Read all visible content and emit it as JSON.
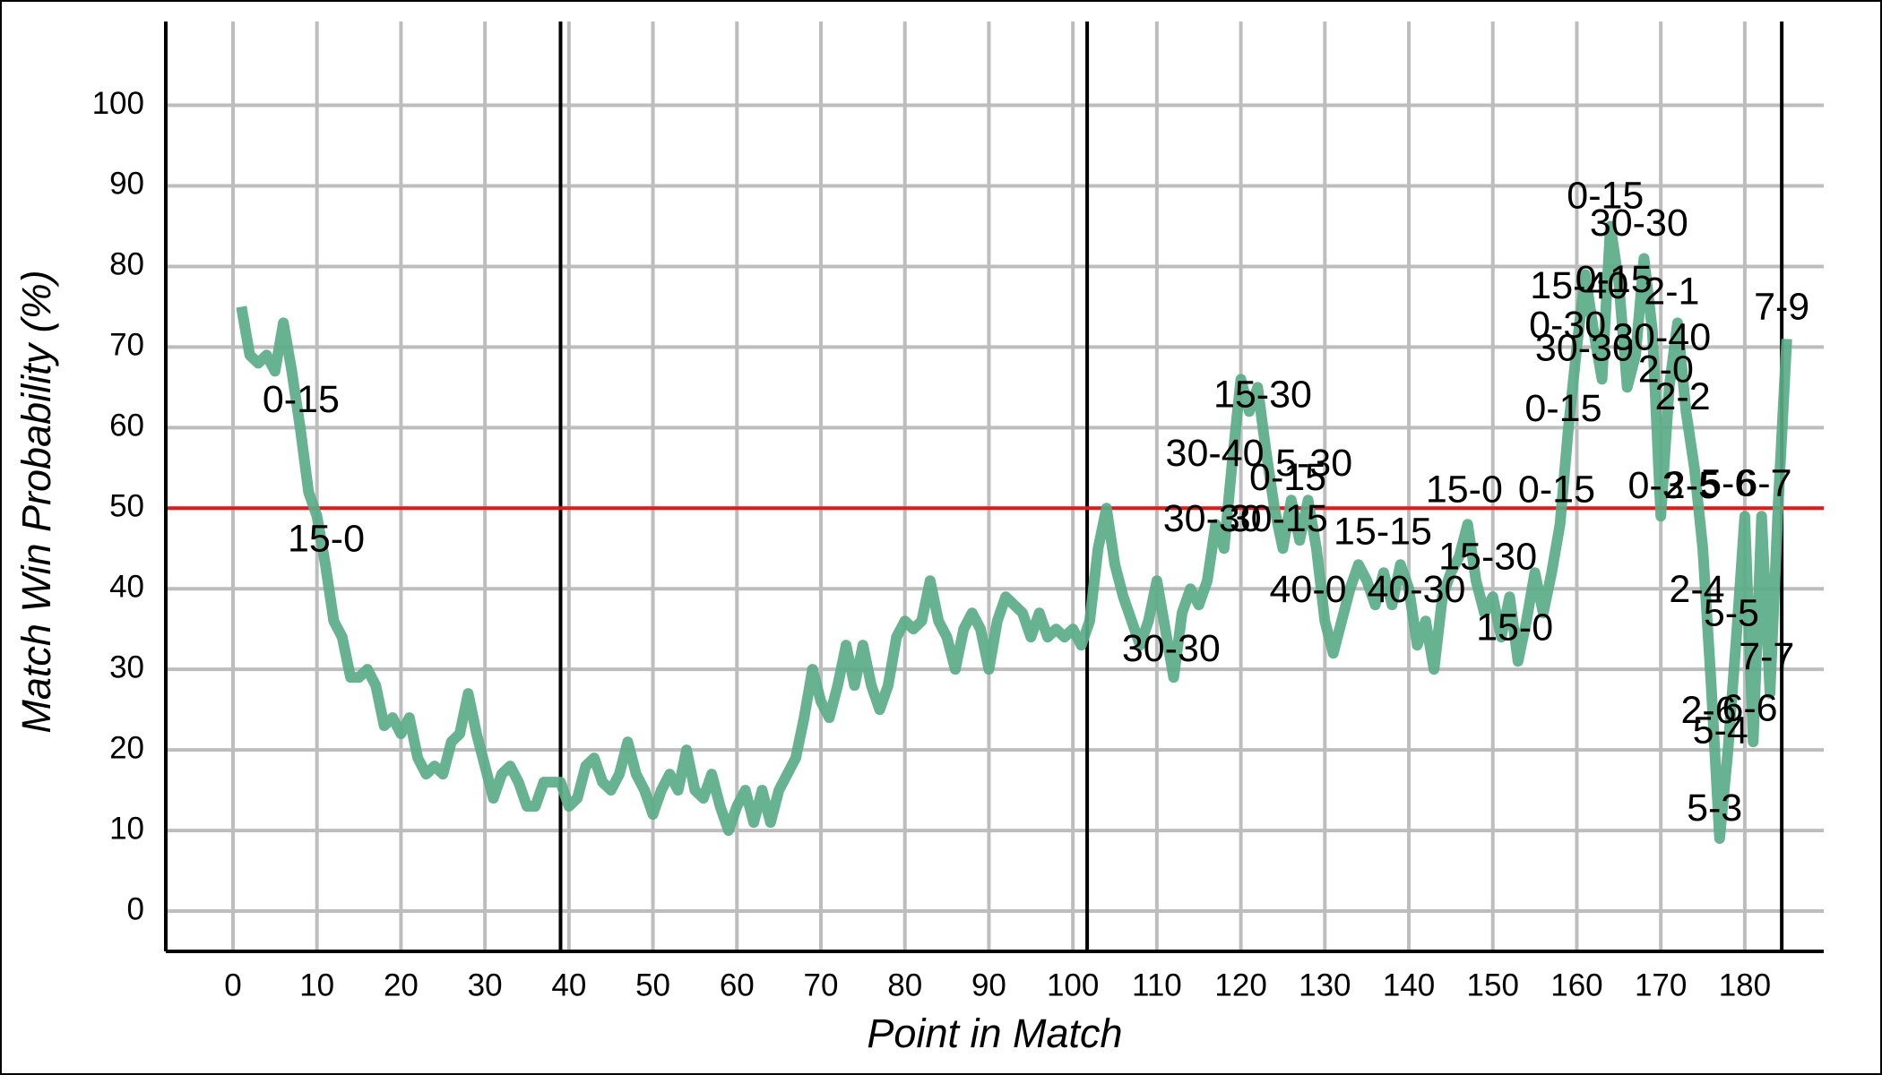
{
  "chart_data": {
    "type": "line",
    "x_label": "Point in Match",
    "y_label": "Match Win Probability (%)",
    "xlim": [
      -8,
      189.4
    ],
    "ylim": [
      -5,
      110.4
    ],
    "xticks": [
      0,
      10,
      20,
      30,
      40,
      50,
      60,
      70,
      80,
      90,
      100,
      110,
      120,
      130,
      140,
      150,
      160,
      170,
      180
    ],
    "yticks": [
      0,
      10,
      20,
      30,
      40,
      50,
      60,
      70,
      80,
      90,
      100
    ],
    "grid": true,
    "reference_line": {
      "y": 50,
      "color": "#e31a1c"
    },
    "set_boundaries": [
      39,
      101.7,
      184.4
    ],
    "series": [
      {
        "color": "#5aab87",
        "x": [
          1,
          2,
          3,
          4,
          5,
          6,
          7,
          8,
          9,
          10,
          11,
          12,
          13,
          14,
          15,
          16,
          17,
          18,
          19,
          20,
          21,
          22,
          23,
          24,
          25,
          26,
          27,
          28,
          29,
          30,
          31,
          32,
          33,
          34,
          35,
          36,
          37,
          38,
          39,
          40,
          41,
          42,
          43,
          44,
          45,
          46,
          47,
          48,
          49,
          50,
          51,
          52,
          53,
          54,
          55,
          56,
          57,
          58,
          59,
          60,
          61,
          62,
          63,
          64,
          65,
          66,
          67,
          68,
          69,
          70,
          71,
          72,
          73,
          74,
          75,
          76,
          77,
          78,
          79,
          80,
          81,
          82,
          83,
          84,
          85,
          86,
          87,
          88,
          89,
          90,
          91,
          92,
          93,
          94,
          95,
          96,
          97,
          98,
          99,
          100,
          101,
          102,
          103,
          104,
          105,
          106,
          107,
          108,
          109,
          110,
          111,
          112,
          113,
          114,
          115,
          116,
          117,
          118,
          119,
          120,
          121,
          122,
          123,
          124,
          125,
          126,
          127,
          128,
          129,
          130,
          131,
          132,
          133,
          134,
          135,
          136,
          137,
          138,
          139,
          140,
          141,
          142,
          143,
          144,
          145,
          146,
          147,
          148,
          149,
          150,
          151,
          152,
          153,
          154,
          155,
          156,
          157,
          158,
          159,
          160,
          161,
          162,
          163,
          164,
          165,
          166,
          167,
          168,
          169,
          170,
          171,
          172,
          173,
          174,
          175,
          176,
          177,
          178,
          179,
          180,
          181,
          182,
          183,
          184,
          185
        ],
        "values": [
          75,
          69,
          68,
          69,
          67,
          73,
          67,
          60,
          52,
          49,
          43,
          36,
          34,
          29,
          29,
          30,
          28,
          23,
          24,
          22,
          24,
          19,
          17,
          18,
          17,
          21,
          22,
          27,
          22,
          18,
          14,
          17,
          18,
          16,
          13,
          13,
          16,
          16,
          16,
          13,
          14,
          18,
          19,
          16,
          15,
          17,
          21,
          17,
          15,
          12,
          15,
          17,
          15,
          20,
          15,
          14,
          17,
          13,
          10,
          13,
          15,
          11,
          15,
          11,
          15,
          17,
          19,
          24,
          30,
          26,
          24,
          28,
          33,
          28,
          33,
          28,
          25,
          28,
          34,
          36,
          35,
          36,
          41,
          36,
          34,
          30,
          35,
          37,
          35,
          30,
          36,
          39,
          38,
          37,
          34,
          37,
          34,
          35,
          34,
          35,
          33,
          36,
          45,
          50,
          43,
          39,
          36,
          33,
          36,
          41,
          35,
          29,
          37,
          40,
          38,
          41,
          48,
          45,
          56,
          66,
          62,
          65,
          57,
          50,
          45,
          51,
          46,
          51,
          45,
          36,
          32,
          36,
          40,
          43,
          41,
          38,
          42,
          38,
          43,
          40,
          33,
          36,
          30,
          39,
          42,
          44,
          48,
          41,
          37,
          39,
          34,
          39,
          31,
          36,
          42,
          37,
          42,
          48,
          60,
          70,
          79,
          72,
          66,
          85,
          78,
          65,
          69,
          81,
          72,
          49,
          65,
          73,
          62,
          55,
          45,
          28,
          9,
          20,
          34,
          49,
          21,
          49,
          27,
          51,
          71
        ]
      }
    ],
    "annotations": [
      {
        "text": "0-15",
        "x": 8.1,
        "y": 63.2
      },
      {
        "text": "15-0",
        "x": 11.1,
        "y": 45.9
      },
      {
        "text": "15-30",
        "x": 122.6,
        "y": 63.8
      },
      {
        "text": "30-40",
        "x": 116.9,
        "y": 56.5
      },
      {
        "text": "5-30",
        "x": 128.7,
        "y": 55.3
      },
      {
        "text": "0-15",
        "x": 125.6,
        "y": 53.5
      },
      {
        "text": "30-30",
        "x": 116.6,
        "y": 48.4
      },
      {
        "text": "30-15",
        "x": 124.5,
        "y": 48.4
      },
      {
        "text": "0-15",
        "x": 163.4,
        "y": 88.5
      },
      {
        "text": "30-30",
        "x": 167.4,
        "y": 85.1
      },
      {
        "text": "15-40",
        "x": 160.3,
        "y": 77.3
      },
      {
        "text": "0-15",
        "x": 164.4,
        "y": 78.1
      },
      {
        "text": "2-1",
        "x": 171.3,
        "y": 76.6
      },
      {
        "text": "0-30",
        "x": 158.9,
        "y": 72.4
      },
      {
        "text": "30-40",
        "x": 170.1,
        "y": 70.9
      },
      {
        "text": "30-30",
        "x": 160.9,
        "y": 69.6
      },
      {
        "text": "2-0",
        "x": 170.6,
        "y": 66.9
      },
      {
        "text": "2-2",
        "x": 172.6,
        "y": 63.5
      },
      {
        "text": "0-15",
        "x": 158.4,
        "y": 62.1
      },
      {
        "text": "7-9",
        "x": 184.4,
        "y": 74.7
      },
      {
        "text": "0-15",
        "x": 157.6,
        "y": 52.0
      },
      {
        "text": "15-0",
        "x": 146.6,
        "y": 52.0
      },
      {
        "text": "15-15",
        "x": 136.9,
        "y": 46.8
      },
      {
        "text": "15-30",
        "x": 149.4,
        "y": 43.7
      },
      {
        "text": "40-0",
        "x": 128,
        "y": 39.6
      },
      {
        "text": "40-30",
        "x": 140.9,
        "y": 39.6
      },
      {
        "text": "15-0",
        "x": 152.6,
        "y": 34.9
      },
      {
        "text": "30-30",
        "x": 111.7,
        "y": 32.3
      },
      {
        "text": "0-3",
        "x": 169.4,
        "y": 52.5
      },
      {
        "text": "2-5",
        "x": 173.7,
        "y": 52.5
      },
      {
        "text": "5-6",
        "x": 178,
        "y": 52.8
      },
      {
        "text": "6-7",
        "x": 182.3,
        "y": 52.8
      },
      {
        "text": "2-4",
        "x": 174.3,
        "y": 39.6
      },
      {
        "text": "5-5",
        "x": 178.4,
        "y": 36.7
      },
      {
        "text": "7-7",
        "x": 182.6,
        "y": 31.3
      },
      {
        "text": "2-6",
        "x": 175.7,
        "y": 24.6
      },
      {
        "text": "6-6",
        "x": 180.6,
        "y": 24.9
      },
      {
        "text": "5-4",
        "x": 177.1,
        "y": 22.1
      },
      {
        "text": "5-3",
        "x": 176.4,
        "y": 12.5
      }
    ]
  }
}
